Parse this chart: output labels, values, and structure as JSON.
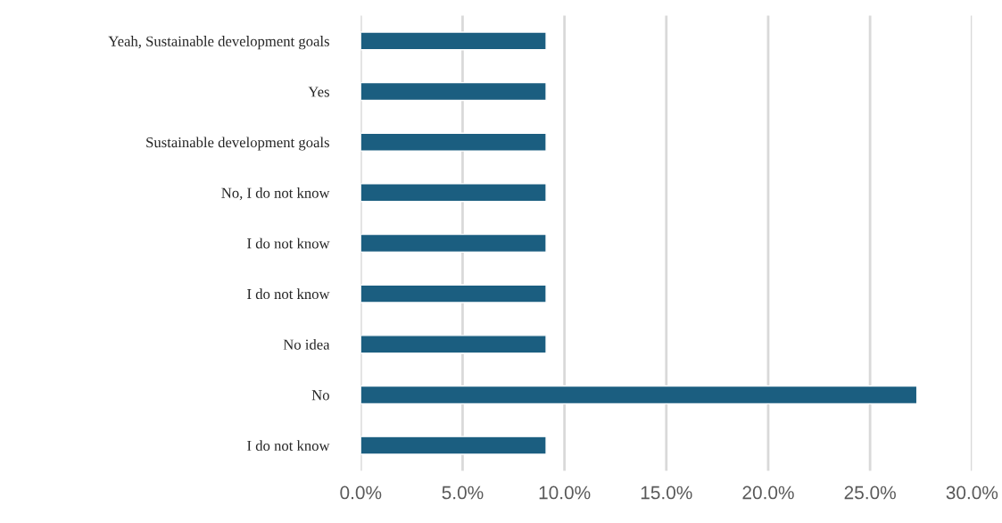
{
  "chart_data": {
    "type": "bar",
    "orientation": "horizontal",
    "categories": [
      "Yeah, Sustainable development goals",
      "Yes",
      "Sustainable development goals",
      "No, I do not know",
      "I do not know",
      "I do not know",
      "No idea",
      "No",
      "I do not know"
    ],
    "values": [
      9.1,
      9.1,
      9.1,
      9.1,
      9.1,
      9.1,
      9.1,
      27.3,
      9.1
    ],
    "color": "#1b5e80",
    "xlim": [
      0,
      30
    ],
    "xticks": [
      {
        "value": 0,
        "label": "0.0%"
      },
      {
        "value": 5,
        "label": "5.0%"
      },
      {
        "value": 10,
        "label": "10.0%"
      },
      {
        "value": 15,
        "label": "15.0%"
      },
      {
        "value": 20,
        "label": "20.0%"
      },
      {
        "value": 25,
        "label": "25.0%"
      },
      {
        "value": 30,
        "label": "30.0%"
      }
    ],
    "grid": "x"
  }
}
